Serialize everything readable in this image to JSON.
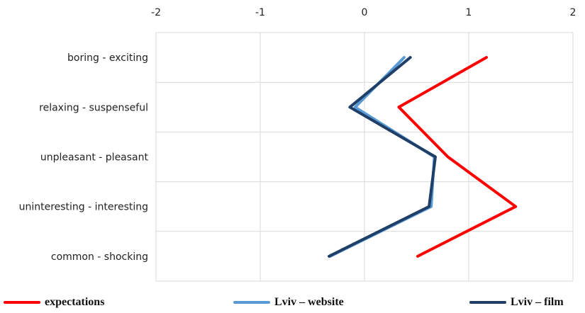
{
  "chart_data": {
    "type": "line",
    "orientation": "horizontal-values",
    "categories": [
      "boring - exciting",
      "relaxing - suspenseful",
      "unpleasant - pleasant",
      "uninteresting - interesting",
      "common - shocking"
    ],
    "xlim": [
      -2,
      2
    ],
    "x_ticks": [
      "-2",
      "-1",
      "0",
      "1",
      "2"
    ],
    "x_tick_values": [
      -2,
      -1,
      0,
      1,
      2
    ],
    "grid": true,
    "x_axis_position": "top",
    "legend_position": "bottom",
    "series": [
      {
        "name": "expectations",
        "color": "#ff0000",
        "values": [
          1.17,
          0.33,
          0.8,
          1.45,
          0.51
        ]
      },
      {
        "name": "Lviv – website",
        "color": "#5b9bd5",
        "values": [
          0.38,
          -0.09,
          0.67,
          0.64,
          -0.33
        ]
      },
      {
        "name": "Lviv – film",
        "color": "#1f3f68",
        "values": [
          0.44,
          -0.14,
          0.68,
          0.62,
          -0.34
        ]
      }
    ]
  }
}
